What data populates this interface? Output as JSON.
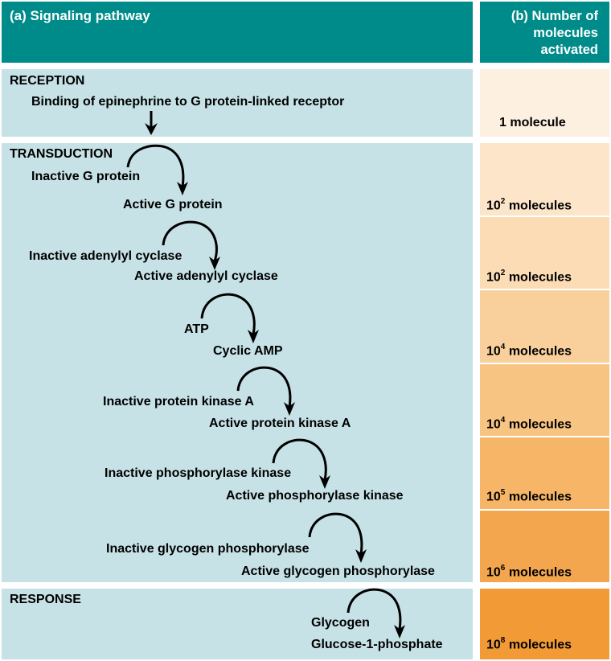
{
  "header": {
    "pathway_title": "(a) Signaling pathway",
    "count_title": "(b) Number of\nmolecules\nactivated"
  },
  "sections": {
    "reception": "RECEPTION",
    "transduction": "TRANSDUCTION",
    "response": "RESPONSE"
  },
  "steps": {
    "binding": "Binding of epinephrine to G protein-linked receptor",
    "inactive_g": "Inactive G protein",
    "active_g": "Active G protein",
    "inactive_ac": "Inactive adenylyl cyclase",
    "active_ac": "Active adenylyl cyclase",
    "atp": "ATP",
    "camp": "Cyclic AMP",
    "inactive_pka": "Inactive protein kinase A",
    "active_pka": "Active protein kinase A",
    "inactive_phk": "Inactive phosphorylase kinase",
    "active_phk": "Active phosphorylase kinase",
    "inactive_gp": "Inactive glycogen phosphorylase",
    "active_gp": "Active glycogen phosphorylase",
    "glycogen": "Glycogen",
    "g1p": "Glucose-1-phosphate"
  },
  "counts": [
    {
      "base": "1",
      "exp": "",
      "unit": "molecule",
      "color": "#fdf0e0"
    },
    {
      "base": "10",
      "exp": "2",
      "unit": "molecules",
      "color": "#fce5c9"
    },
    {
      "base": "10",
      "exp": "2",
      "unit": "molecules",
      "color": "#fbdcb5"
    },
    {
      "base": "10",
      "exp": "4",
      "unit": "molecules",
      "color": "#f9d09b"
    },
    {
      "base": "10",
      "exp": "4",
      "unit": "molecules",
      "color": "#f8c482"
    },
    {
      "base": "10",
      "exp": "5",
      "unit": "molecules",
      "color": "#f6b567"
    },
    {
      "base": "10",
      "exp": "6",
      "unit": "molecules",
      "color": "#f4a64e"
    },
    {
      "base": "10",
      "exp": "8",
      "unit": "molecules",
      "color": "#f29a35"
    }
  ]
}
